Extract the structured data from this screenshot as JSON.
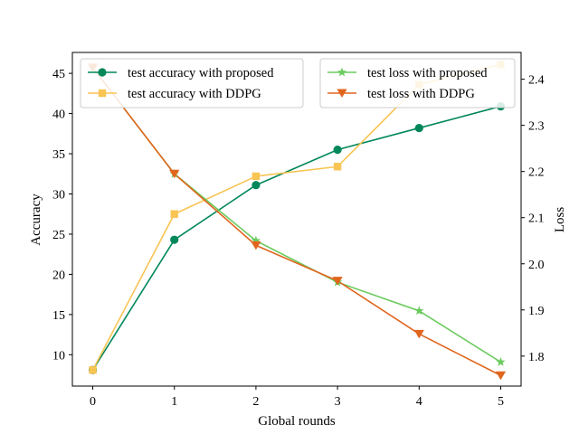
{
  "chart_data": {
    "type": "line",
    "title": "",
    "xlabel": "Global rounds",
    "ylabel_left": "Accuracy",
    "ylabel_right": "Loss",
    "x": [
      0,
      1,
      2,
      3,
      4,
      5
    ],
    "xlim": [
      -0.25,
      5.25
    ],
    "xticks": [
      "0",
      "1",
      "2",
      "3",
      "4",
      "5"
    ],
    "ylim_left": [
      6.1,
      47.6
    ],
    "yticks_left": [
      "10",
      "15",
      "20",
      "25",
      "30",
      "35",
      "40",
      "45"
    ],
    "ylim_right": [
      1.735,
      2.458
    ],
    "yticks_right": [
      "1.8",
      "1.9",
      "2.0",
      "2.1",
      "2.2",
      "2.3",
      "2.4"
    ],
    "grid": false,
    "series": [
      {
        "name": "test accuracy with proposed",
        "axis": "left",
        "marker": "circle",
        "color": "#00875A",
        "values": [
          8.1,
          24.3,
          31.1,
          35.5,
          38.2,
          40.9
        ]
      },
      {
        "name": "test accuracy with DDPG",
        "axis": "left",
        "marker": "square",
        "color": "#F8C453",
        "values": [
          8.1,
          27.5,
          32.2,
          33.4,
          43.6,
          46.1
        ]
      },
      {
        "name": "test loss with proposed",
        "axis": "right",
        "marker": "star",
        "color": "#6CCB5F",
        "values": [
          2.425,
          2.195,
          2.05,
          1.96,
          1.898,
          1.787
        ]
      },
      {
        "name": "test loss with DDPG",
        "axis": "right",
        "marker": "triangle-down",
        "color": "#E0661E",
        "values": [
          2.425,
          2.195,
          2.04,
          1.963,
          1.848,
          1.758
        ]
      }
    ],
    "legend_left": {
      "placement": "top-left",
      "entries": [
        "test accuracy with proposed",
        "test accuracy with DDPG"
      ]
    },
    "legend_right": {
      "placement": "top-right",
      "entries": [
        "test loss with proposed",
        "test loss with DDPG"
      ]
    }
  }
}
